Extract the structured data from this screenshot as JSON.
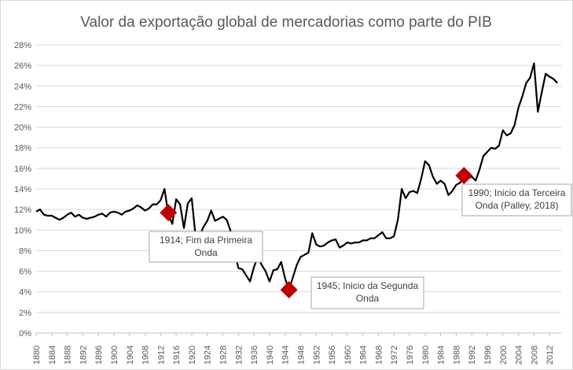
{
  "chart_data": {
    "type": "line",
    "title": "Valor da exportação global de mercadorias como parte do PIB",
    "xlabel": "",
    "ylabel": "",
    "xlim": [
      1880,
      2015
    ],
    "ylim": [
      0,
      28
    ],
    "y_ticks": [
      "0%",
      "2%",
      "4%",
      "6%",
      "8%",
      "10%",
      "12%",
      "14%",
      "16%",
      "18%",
      "20%",
      "22%",
      "24%",
      "26%",
      "28%"
    ],
    "x_ticks": [
      "1880",
      "1884",
      "1888",
      "1892",
      "1896",
      "1900",
      "1904",
      "1908",
      "1912",
      "1916",
      "1920",
      "1924",
      "1928",
      "1932",
      "1936",
      "1940",
      "1944",
      "1948",
      "1952",
      "1956",
      "1960",
      "1964",
      "1968",
      "1972",
      "1976",
      "1980",
      "1984",
      "1988",
      "1992",
      "1996",
      "2000",
      "2004",
      "2008",
      "2012"
    ],
    "grid": "horizontal",
    "series": [
      {
        "color": "#000000",
        "x": [
          1880,
          1881,
          1882,
          1883,
          1884,
          1885,
          1886,
          1887,
          1888,
          1889,
          1890,
          1891,
          1892,
          1893,
          1894,
          1895,
          1896,
          1897,
          1898,
          1899,
          1900,
          1901,
          1902,
          1903,
          1904,
          1905,
          1906,
          1907,
          1908,
          1909,
          1910,
          1911,
          1912,
          1913,
          1914,
          1915,
          1916,
          1917,
          1918,
          1919,
          1920,
          1921,
          1922,
          1923,
          1924,
          1925,
          1926,
          1927,
          1928,
          1929,
          1930,
          1931,
          1932,
          1933,
          1934,
          1935,
          1936,
          1937,
          1938,
          1939,
          1940,
          1941,
          1942,
          1943,
          1944,
          1945,
          1946,
          1947,
          1948,
          1949,
          1950,
          1951,
          1952,
          1953,
          1954,
          1955,
          1956,
          1957,
          1958,
          1959,
          1960,
          1961,
          1962,
          1963,
          1964,
          1965,
          1966,
          1967,
          1968,
          1969,
          1970,
          1971,
          1972,
          1973,
          1974,
          1975,
          1976,
          1977,
          1978,
          1979,
          1980,
          1981,
          1982,
          1983,
          1984,
          1985,
          1986,
          1987,
          1988,
          1989,
          1990,
          1991,
          1992,
          1993,
          1994,
          1995,
          1996,
          1997,
          1998,
          1999,
          2000,
          2001,
          2002,
          2003,
          2004,
          2005,
          2006,
          2007,
          2008,
          2009,
          2010,
          2011,
          2012,
          2013,
          2014
        ],
        "values": [
          11.8,
          12.0,
          11.5,
          11.4,
          11.4,
          11.2,
          11.0,
          11.2,
          11.5,
          11.7,
          11.3,
          11.5,
          11.2,
          11.1,
          11.2,
          11.3,
          11.5,
          11.6,
          11.3,
          11.7,
          11.8,
          11.7,
          11.5,
          11.8,
          11.9,
          12.1,
          12.4,
          12.2,
          11.9,
          12.1,
          12.5,
          12.5,
          12.9,
          14.0,
          11.5,
          10.6,
          13.0,
          12.5,
          10.2,
          12.6,
          13.1,
          9.3,
          9.4,
          10.3,
          10.9,
          11.9,
          10.9,
          11.1,
          11.3,
          11.0,
          9.9,
          8.0,
          6.3,
          6.2,
          5.6,
          5.0,
          6.4,
          7.4,
          6.6,
          6.0,
          5.0,
          6.1,
          6.2,
          6.9,
          5.3,
          4.2,
          5.4,
          6.6,
          7.4,
          7.6,
          7.8,
          9.7,
          8.6,
          8.4,
          8.5,
          8.8,
          9.0,
          9.1,
          8.3,
          8.5,
          8.8,
          8.7,
          8.8,
          8.8,
          9.0,
          9.0,
          9.2,
          9.2,
          9.5,
          9.8,
          9.2,
          9.2,
          9.4,
          11.0,
          14.0,
          13.1,
          13.7,
          13.8,
          13.6,
          15.0,
          16.7,
          16.3,
          15.2,
          14.5,
          14.8,
          14.5,
          13.4,
          13.8,
          14.4,
          14.6,
          15.2,
          15.0,
          15.2,
          14.8,
          15.9,
          17.2,
          17.6,
          18.0,
          17.9,
          18.2,
          19.7,
          19.2,
          19.4,
          20.2,
          21.9,
          23.0,
          24.3,
          24.8,
          26.2,
          21.5,
          23.4,
          25.2,
          24.9,
          24.7,
          24.3
        ]
      }
    ],
    "markers": [
      {
        "x": 1914,
        "y": 11.7,
        "color": "#c00000"
      },
      {
        "x": 1945,
        "y": 4.2,
        "color": "#c00000"
      },
      {
        "x": 1990,
        "y": 15.3,
        "color": "#c00000"
      }
    ],
    "annotations": [
      {
        "lines": [
          "1914; Fim da Primeira",
          "Onda"
        ]
      },
      {
        "lines": [
          "1945; Inicio da Segunda",
          "Onda"
        ]
      },
      {
        "lines": [
          "1990; Inicio da Terceira",
          "Onda (Palley, 2018)"
        ]
      }
    ]
  }
}
